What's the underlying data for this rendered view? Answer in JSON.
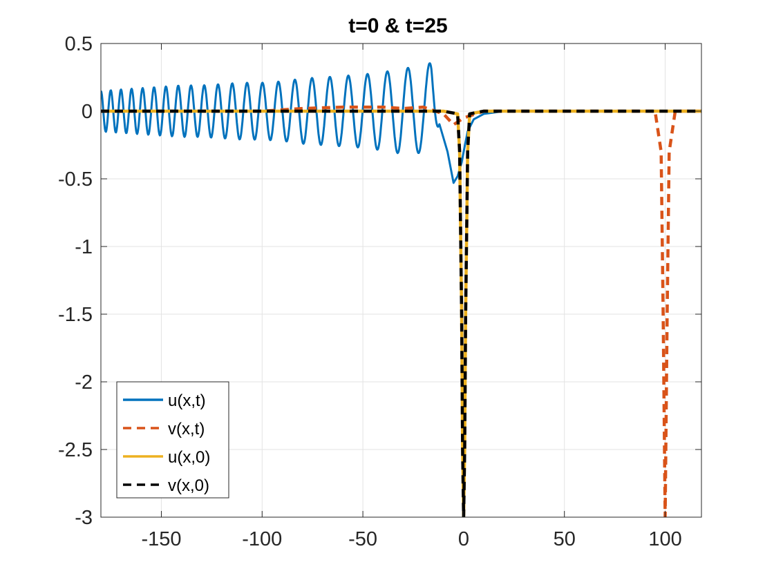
{
  "chart_data": {
    "type": "line",
    "title": "t=0 & t=25",
    "xlabel": "",
    "ylabel": "",
    "xlim": [
      -180,
      118
    ],
    "ylim": [
      -3,
      0.5
    ],
    "xticks": [
      -150,
      -100,
      -50,
      0,
      50,
      100
    ],
    "yticks": [
      0.5,
      0,
      -0.5,
      -1,
      -1.5,
      -2,
      -2.5,
      -3
    ],
    "xtick_labels": [
      "-150",
      "-100",
      "-50",
      "0",
      "50",
      "100"
    ],
    "ytick_labels": [
      "0.5",
      "0",
      "-0.5",
      "-1",
      "-1.5",
      "-2",
      "-2.5",
      "-3"
    ],
    "grid": true,
    "legend_position": "bottom-left",
    "series": [
      {
        "name": "u(x,t)",
        "color": "#0072BD",
        "dash": "solid",
        "x": [
          -180,
          -170,
          -160,
          -150,
          -140,
          -130,
          -120,
          -110,
          -100,
          -90,
          -80,
          -70,
          -60,
          -50,
          -45,
          -40,
          -35,
          -30,
          -25,
          -20,
          -16,
          -12,
          -8,
          -5,
          -3,
          -1,
          0,
          2,
          5,
          10,
          15,
          20,
          30,
          60,
          118
        ],
        "values": [
          0.15,
          0.16,
          0.17,
          0.18,
          0.19,
          0.19,
          0.2,
          0.21,
          0.21,
          0.22,
          0.24,
          0.25,
          0.26,
          0.27,
          0.28,
          0.29,
          0.3,
          0.32,
          0.32,
          0.3,
          0.37,
          0.1,
          -0.3,
          -0.53,
          -0.48,
          -0.38,
          -0.3,
          -0.15,
          -0.06,
          -0.02,
          -0.01,
          0.0,
          0.0,
          0.0,
          0.0
        ]
      },
      {
        "name": "v(x,t)",
        "color": "#D95319",
        "dash": "dashed",
        "x": [
          -180,
          -100,
          -80,
          -60,
          -40,
          -30,
          -20,
          -10,
          -5,
          0,
          10,
          50,
          95,
          98,
          99,
          100,
          101,
          102,
          105,
          118
        ],
        "values": [
          0.0,
          0.0,
          0.02,
          0.03,
          0.03,
          0.02,
          0.03,
          -0.02,
          -0.1,
          -0.05,
          0.0,
          0.0,
          0.0,
          -0.3,
          -1.5,
          -3.0,
          -1.5,
          -0.3,
          0.0,
          0.0
        ]
      },
      {
        "name": "u(x,0)",
        "color": "#EDB120",
        "dash": "solid",
        "x": [
          -180,
          -10,
          -3,
          -2,
          -1,
          -0.5,
          0,
          0.5,
          1,
          2,
          3,
          10,
          118
        ],
        "values": [
          0.0,
          0.0,
          -0.02,
          -0.3,
          -1.5,
          -2.5,
          -3.0,
          -2.5,
          -1.5,
          -0.3,
          -0.02,
          0.0,
          0.0
        ]
      },
      {
        "name": "v(x,0)",
        "color": "#000000",
        "dash": "dashed",
        "x": [
          -180,
          -10,
          -3,
          -2,
          -1,
          -0.5,
          0,
          0.5,
          1,
          2,
          3,
          10,
          118
        ],
        "values": [
          0.0,
          0.0,
          -0.02,
          -0.3,
          -1.5,
          -2.5,
          -3.0,
          -2.5,
          -1.5,
          -0.3,
          -0.02,
          0.0,
          0.0
        ]
      }
    ],
    "u_t_oscillation": {
      "x_start": -180,
      "x_end": -12,
      "wavelength_left": 4.8,
      "wavelength_right": 11
    }
  }
}
